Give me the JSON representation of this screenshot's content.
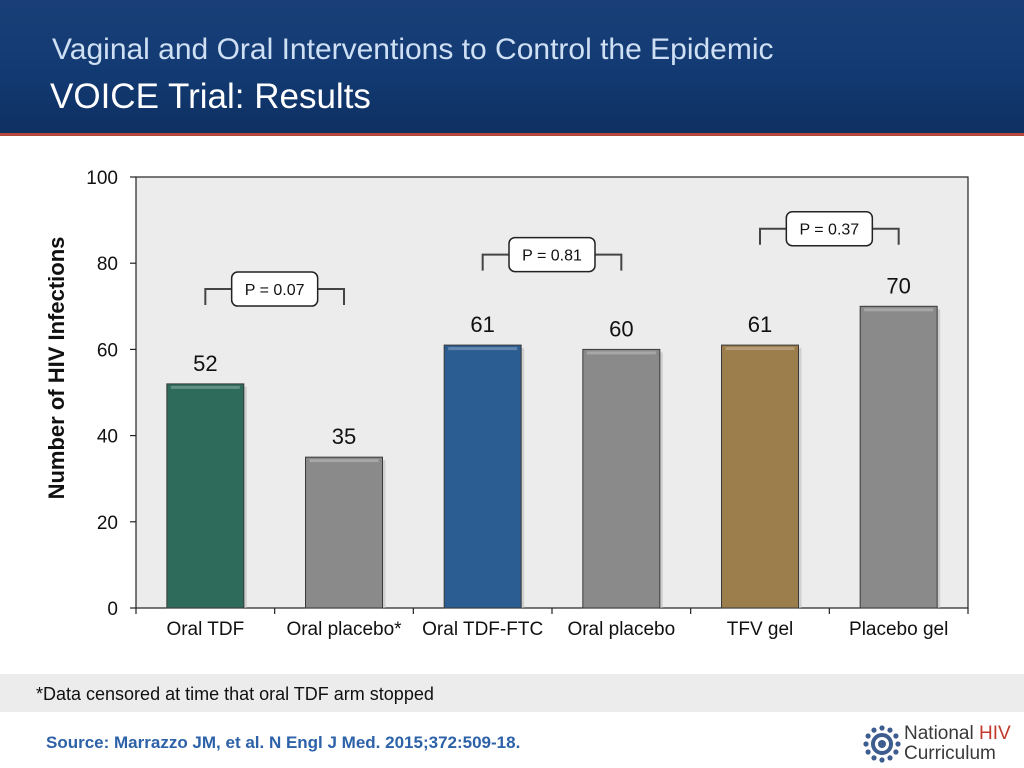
{
  "header": {
    "title_line1": "Vaginal and Oral Interventions to Control the Epidemic",
    "title_line2": "VOICE Trial: Results"
  },
  "chart_data": {
    "type": "bar",
    "title": "",
    "xlabel": "",
    "ylabel": "Number of HIV Infections",
    "ylim": [
      0,
      100
    ],
    "yticks": [
      0,
      20,
      40,
      60,
      80,
      100
    ],
    "grid": false,
    "categories": [
      "Oral TDF",
      "Oral placebo*",
      "Oral TDF-FTC",
      "Oral placebo",
      "TFV gel",
      "Placebo gel"
    ],
    "values": [
      52,
      35,
      61,
      60,
      61,
      70
    ],
    "data_labels": [
      "52",
      "35",
      "61",
      "60",
      "61",
      "70"
    ],
    "bar_colors": [
      "#2e6b5a",
      "#8a8a8a",
      "#2c5d92",
      "#8a8a8a",
      "#9c7d4c",
      "#8a8a8a"
    ],
    "plot_background": "#ececec",
    "annotations": [
      {
        "text": "P = 0.07",
        "from": 0,
        "to": 1,
        "y": 74
      },
      {
        "text": "P = 0.81",
        "from": 2,
        "to": 3,
        "y": 82
      },
      {
        "text": "P = 0.37",
        "from": 4,
        "to": 5,
        "y": 88
      }
    ]
  },
  "footnote": "*Data censored at time that oral TDF arm stopped",
  "source": "Source: Marrazzo JM, et al. N Engl J Med. 2015;372:509-18.",
  "logo": {
    "line1_a": "National ",
    "line1_b": "HIV",
    "line2": "Curriculum",
    "icon": "gear-icon"
  }
}
